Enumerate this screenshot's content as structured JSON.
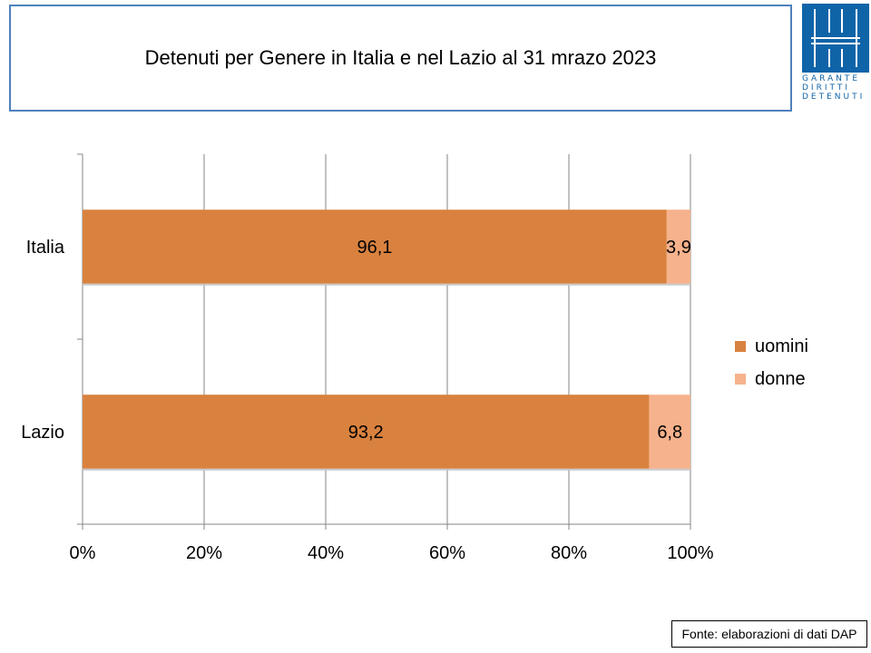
{
  "title": "Detenuti per Genere in Italia e nel Lazio al 31 mrazo 2023",
  "logo": {
    "text_lines": [
      "GARANTE",
      "DIRITTI",
      "DETENUTI"
    ],
    "color": "#0f64a8"
  },
  "source": "Fonte: elaborazioni di dati DAP",
  "chart_data": {
    "type": "bar",
    "orientation": "horizontal",
    "stacked": "percent",
    "categories": [
      "Italia",
      "Lazio"
    ],
    "series": [
      {
        "name": "uomini",
        "values": [
          96.1,
          93.2
        ],
        "labels": [
          "96,1",
          "93,2"
        ],
        "color": "#d9823f"
      },
      {
        "name": "donne",
        "values": [
          3.9,
          6.8
        ],
        "labels": [
          "3,9",
          "6,8"
        ],
        "color": "#f6b28c"
      }
    ],
    "xlim": [
      0,
      100
    ],
    "x_ticks": [
      "0%",
      "20%",
      "40%",
      "60%",
      "80%",
      "100%"
    ],
    "grid": true,
    "legend_position": "right"
  }
}
